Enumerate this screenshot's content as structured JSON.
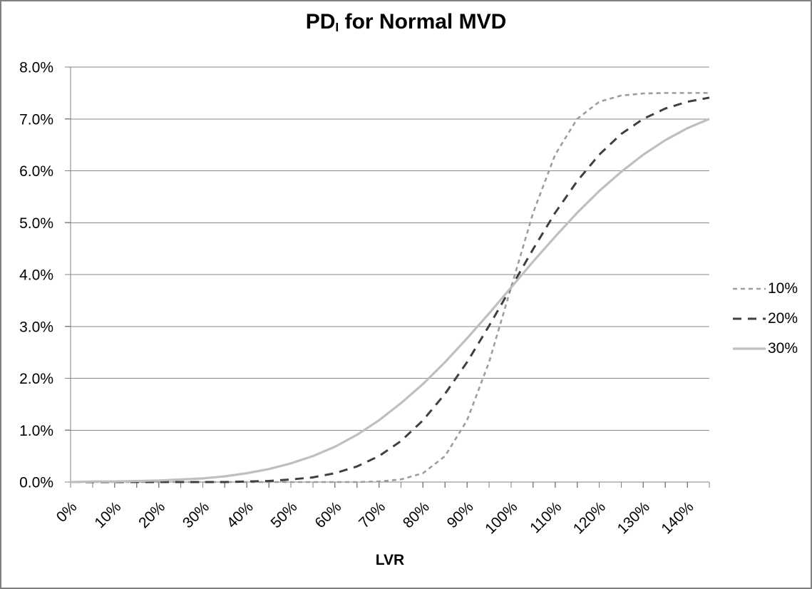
{
  "frame": {
    "background": "#ffffff",
    "border_color": "#7f7f7f"
  },
  "colors": {
    "gridline": "#8a8a8a",
    "axis": "#808080",
    "tick": "#808080",
    "text": "#000000"
  },
  "chart_data": {
    "type": "line",
    "title": {
      "prefix": "PD",
      "subscript": "I",
      "suffix": " for Normal MVD",
      "plain": "PDI for Normal MVD"
    },
    "xlabel": "LVR",
    "ylabel": "",
    "legend_position": "right",
    "x_axis": {
      "min": 0,
      "max": 145,
      "minor_tick_step": 5,
      "major_tick_step": 10,
      "tick_label_rotation_deg": 45,
      "tick_values": [
        0,
        10,
        20,
        30,
        40,
        50,
        60,
        70,
        80,
        90,
        100,
        110,
        120,
        130,
        140
      ],
      "tick_labels": [
        "0%",
        "10%",
        "20%",
        "30%",
        "40%",
        "50%",
        "60%",
        "70%",
        "80%",
        "90%",
        "100%",
        "110%",
        "120%",
        "130%",
        "140%"
      ]
    },
    "y_axis": {
      "min": 0,
      "max": 8,
      "tick_step": 1,
      "gridlines": true,
      "tick_values": [
        0,
        1,
        2,
        3,
        4,
        5,
        6,
        7,
        8
      ],
      "tick_labels": [
        "0.0%",
        "1.0%",
        "2.0%",
        "3.0%",
        "4.0%",
        "5.0%",
        "6.0%",
        "7.0%",
        "8.0%"
      ]
    },
    "x": [
      0,
      5,
      10,
      15,
      20,
      25,
      30,
      35,
      40,
      45,
      50,
      55,
      60,
      65,
      70,
      75,
      80,
      85,
      90,
      95,
      100,
      105,
      110,
      115,
      120,
      125,
      130,
      135,
      140,
      145
    ],
    "series": [
      {
        "name": "10%",
        "style": "dashed-short",
        "color": "#9d9d9d",
        "dash": "6,5",
        "width": 2.6,
        "values": [
          0,
          0,
          0,
          0,
          0,
          0,
          0,
          0,
          0,
          0,
          0,
          0,
          0,
          0,
          0.01,
          0.05,
          0.17,
          0.5,
          1.19,
          2.31,
          3.75,
          5.19,
          6.31,
          7.0,
          7.33,
          7.45,
          7.49,
          7.5,
          7.5,
          7.5
        ]
      },
      {
        "name": "20%",
        "style": "dashed-long",
        "color": "#3f3f3f",
        "dash": "12,9",
        "width": 3,
        "values": [
          0,
          0,
          0,
          0,
          0,
          0,
          0,
          0,
          0.01,
          0.02,
          0.05,
          0.09,
          0.17,
          0.3,
          0.5,
          0.79,
          1.19,
          1.7,
          2.31,
          3.01,
          3.75,
          4.49,
          5.19,
          5.8,
          6.31,
          6.71,
          7.0,
          7.2,
          7.33,
          7.41
        ]
      },
      {
        "name": "30%",
        "style": "solid",
        "color": "#bfbfbf",
        "dash": "",
        "width": 3.2,
        "values": [
          0,
          0.01,
          0.01,
          0.02,
          0.03,
          0.05,
          0.07,
          0.11,
          0.17,
          0.25,
          0.36,
          0.5,
          0.68,
          0.91,
          1.19,
          1.52,
          1.89,
          2.31,
          2.77,
          3.25,
          3.75,
          4.25,
          4.73,
          5.19,
          5.61,
          5.98,
          6.31,
          6.59,
          6.82,
          7.0
        ]
      }
    ]
  }
}
